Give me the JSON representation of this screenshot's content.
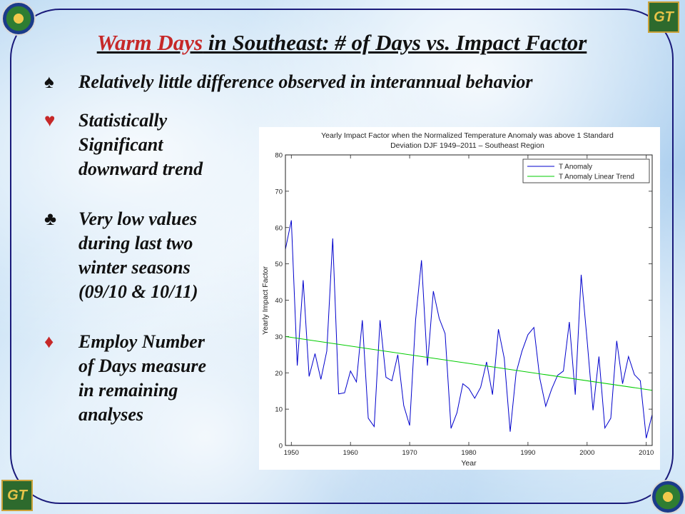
{
  "slide": {
    "title_highlight": "Warm Days",
    "title_rest": " in Southeast: # of Days vs. Impact Factor",
    "bullets": [
      {
        "symbol": "♠",
        "color": "#111111",
        "text": "Relatively little difference observed in interannual behavior"
      },
      {
        "symbol": "♥",
        "color": "#c62828",
        "lines": [
          "Statistically",
          "Significant",
          "downward trend"
        ]
      },
      {
        "symbol": "♣",
        "color": "#111111",
        "lines": [
          "Very low values",
          "during last two",
          "winter seasons",
          "(09/10 & 10/11)"
        ]
      },
      {
        "symbol": "♦",
        "color": "#c62828",
        "lines": [
          "Employ Number",
          "of Days measure",
          "in remaining",
          "analyses"
        ]
      }
    ],
    "logo_text": "GT"
  },
  "chart_data": {
    "type": "line",
    "title_lines": [
      "Yearly Impact Factor when the Normalized Temperature Anomaly was above 1 Standard",
      "Deviation DJF 1949–2011 – Southeast Region"
    ],
    "xlabel": "Year",
    "ylabel": "Yearly Impact Factor",
    "xlim": [
      1949,
      2011
    ],
    "ylim": [
      0,
      80
    ],
    "xticks": [
      1950,
      1960,
      1970,
      1980,
      1990,
      2000,
      2010
    ],
    "yticks": [
      0,
      10,
      20,
      30,
      40,
      50,
      60,
      70,
      80
    ],
    "legend_position": "top-right",
    "series": [
      {
        "name": "T Anomaly",
        "color": "#0000cc",
        "x": [
          1949,
          1950,
          1951,
          1952,
          1953,
          1954,
          1955,
          1956,
          1957,
          1958,
          1959,
          1960,
          1961,
          1962,
          1963,
          1964,
          1965,
          1966,
          1967,
          1968,
          1969,
          1970,
          1971,
          1972,
          1973,
          1974,
          1975,
          1976,
          1977,
          1978,
          1979,
          1980,
          1981,
          1982,
          1983,
          1984,
          1985,
          1986,
          1987,
          1988,
          1989,
          1990,
          1991,
          1992,
          1993,
          1994,
          1995,
          1996,
          1997,
          1998,
          1999,
          2000,
          2001,
          2002,
          2003,
          2004,
          2005,
          2006,
          2007,
          2008,
          2009,
          2010,
          2011
        ],
        "y": [
          54,
          62,
          22,
          45.5,
          19,
          25.3,
          18.2,
          26,
          57,
          14.2,
          14.5,
          20.5,
          17.5,
          34.5,
          7.5,
          5.2,
          34.5,
          18.8,
          17.8,
          25,
          11,
          5.5,
          34.5,
          51,
          22,
          42.5,
          35,
          30.8,
          4.7,
          9,
          17,
          15.7,
          13,
          16,
          23,
          14,
          32,
          24,
          3.8,
          20,
          26,
          30.5,
          32.5,
          18.5,
          10.8,
          15.5,
          19.3,
          20.5,
          34,
          14,
          47,
          29,
          9.7,
          24.5,
          4.8,
          7.5,
          28.8,
          17,
          24.5,
          19.5,
          17.8,
          2,
          8.5
        ]
      },
      {
        "name": "T Anomaly Linear Trend",
        "color": "#00cc00",
        "x": [
          1949,
          2011
        ],
        "y": [
          30,
          15.2
        ]
      }
    ]
  }
}
